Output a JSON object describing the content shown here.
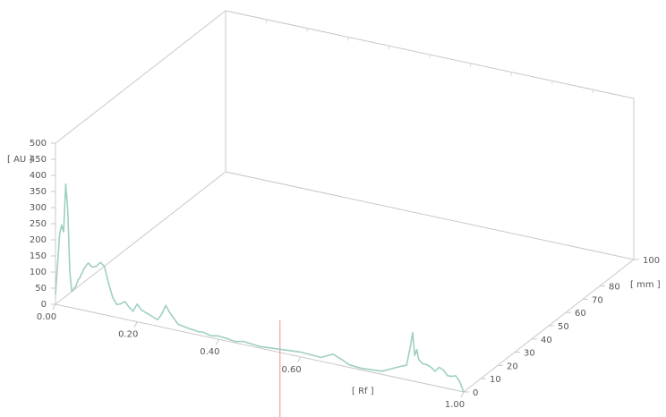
{
  "chart_data": {
    "type": "line",
    "title": "",
    "xlabel": "[ Rf ]",
    "ylabel": "[ AU ]",
    "zlabel": "[ mm ]",
    "xlim": [
      0.0,
      1.0
    ],
    "ylim": [
      0,
      500
    ],
    "zlim": [
      0,
      100
    ],
    "x_ticks": [
      "0.00",
      "0.20",
      "0.40",
      "0.60",
      "1.00"
    ],
    "y_ticks": [
      "0",
      "50",
      "100",
      "150",
      "200",
      "250",
      "300",
      "350",
      "400",
      "450",
      "500"
    ],
    "z_ticks": [
      "0",
      "10",
      "20",
      "30",
      "40",
      "50",
      "60",
      "70",
      "80",
      "100"
    ],
    "grid": false,
    "series": [
      {
        "color": "#9fcfc4",
        "x": [
          0.0,
          0.01,
          0.015,
          0.02,
          0.025,
          0.03,
          0.035,
          0.04,
          0.045,
          0.05,
          0.055,
          0.06,
          0.07,
          0.08,
          0.09,
          0.1,
          0.11,
          0.12,
          0.13,
          0.14,
          0.15,
          0.16,
          0.17,
          0.18,
          0.19,
          0.2,
          0.21,
          0.22,
          0.23,
          0.24,
          0.25,
          0.26,
          0.27,
          0.28,
          0.3,
          0.32,
          0.34,
          0.35,
          0.36,
          0.37,
          0.38,
          0.39,
          0.4,
          0.42,
          0.44,
          0.46,
          0.5,
          0.55,
          0.6,
          0.65,
          0.68,
          0.7,
          0.72,
          0.75,
          0.8,
          0.85,
          0.86,
          0.87,
          0.875,
          0.88,
          0.885,
          0.89,
          0.9,
          0.91,
          0.92,
          0.93,
          0.94,
          0.95,
          0.96,
          0.97,
          0.98,
          0.99,
          1.0
        ],
        "y": [
          30,
          220,
          250,
          230,
          380,
          300,
          110,
          50,
          60,
          70,
          90,
          100,
          130,
          150,
          140,
          145,
          160,
          150,
          100,
          60,
          40,
          45,
          55,
          40,
          30,
          55,
          40,
          35,
          30,
          25,
          20,
          40,
          70,
          50,
          20,
          15,
          12,
          10,
          12,
          9,
          6,
          8,
          10,
          8,
          4,
          10,
          5,
          10,
          15,
          12,
          30,
          20,
          8,
          5,
          10,
          40,
          45,
          110,
          150,
          80,
          100,
          70,
          60,
          60,
          55,
          45,
          60,
          55,
          40,
          40,
          45,
          30,
          0
        ]
      }
    ]
  }
}
